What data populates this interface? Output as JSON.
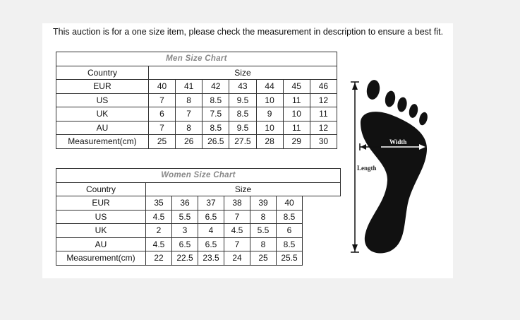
{
  "notice": "This auction is for a one size item, please check the measurement in description to ensure a best fit.",
  "men_chart": {
    "title": "Men Size Chart",
    "header": {
      "country": "Country",
      "size": "Size"
    },
    "rows": [
      {
        "label": "EUR",
        "values": [
          "40",
          "41",
          "42",
          "43",
          "44",
          "45",
          "46"
        ]
      },
      {
        "label": "US",
        "values": [
          "7",
          "8",
          "8.5",
          "9.5",
          "10",
          "11",
          "12"
        ]
      },
      {
        "label": "UK",
        "values": [
          "6",
          "7",
          "7.5",
          "8.5",
          "9",
          "10",
          "11"
        ]
      },
      {
        "label": "AU",
        "values": [
          "7",
          "8",
          "8.5",
          "9.5",
          "10",
          "11",
          "12"
        ]
      },
      {
        "label": "Measurement(cm)",
        "values": [
          "25",
          "26",
          "26.5",
          "27.5",
          "28",
          "29",
          "30"
        ]
      }
    ]
  },
  "women_chart": {
    "title": "Women Size Chart",
    "header": {
      "country": "Country",
      "size": "Size"
    },
    "rows": [
      {
        "label": "EUR",
        "values": [
          "35",
          "36",
          "37",
          "38",
          "39",
          "40"
        ]
      },
      {
        "label": "US",
        "values": [
          "4.5",
          "5.5",
          "6.5",
          "7",
          "8",
          "8.5"
        ]
      },
      {
        "label": "UK",
        "values": [
          "2",
          "3",
          "4",
          "4.5",
          "5.5",
          "6"
        ]
      },
      {
        "label": "AU",
        "values": [
          "4.5",
          "6.5",
          "6.5",
          "7",
          "8",
          "8.5"
        ]
      },
      {
        "label": "Measurement(cm)",
        "values": [
          "22",
          "22.5",
          "23.5",
          "24",
          "25",
          "25.5"
        ]
      }
    ]
  },
  "foot_diagram": {
    "width_label": "Width",
    "length_label": "Length",
    "icon": "footprint-icon"
  }
}
